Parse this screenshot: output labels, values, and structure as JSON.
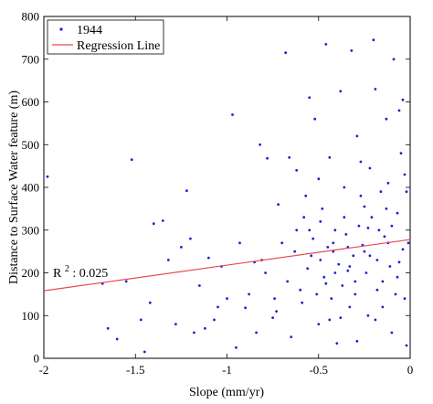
{
  "chart_data": {
    "type": "scatter",
    "xlabel": "Slope (mm/yr)",
    "ylabel": "Distance to Surface Water feature (m)",
    "xlim": [
      -2,
      0
    ],
    "ylim": [
      0,
      800
    ],
    "xticks": [
      -2,
      -1.5,
      -1,
      -0.5,
      0
    ],
    "xtick_labels": [
      "-2",
      "-1.5",
      "-1",
      "-0.5",
      "0"
    ],
    "yticks": [
      0,
      100,
      200,
      300,
      400,
      500,
      600,
      700,
      800
    ],
    "ytick_labels": [
      "0",
      "100",
      "200",
      "300",
      "400",
      "500",
      "600",
      "700",
      "800"
    ],
    "grid": false,
    "legend_position": "top-left",
    "colors": {
      "points": "#1f1fd6",
      "regression": "#e8474d"
    },
    "series": [
      {
        "name": "1944",
        "kind": "points",
        "points": [
          [
            -1.98,
            425
          ],
          [
            -1.6,
            45
          ],
          [
            -1.52,
            465
          ],
          [
            -1.45,
            15
          ],
          [
            -1.4,
            315
          ],
          [
            -1.35,
            322
          ],
          [
            -1.28,
            80
          ],
          [
            -1.22,
            392
          ],
          [
            -1.2,
            280
          ],
          [
            -1.15,
            170
          ],
          [
            -1.1,
            235
          ],
          [
            -1.07,
            90
          ],
          [
            -1.03,
            215
          ],
          [
            -0.97,
            570
          ],
          [
            -0.95,
            25
          ],
          [
            -0.9,
            118
          ],
          [
            -0.85,
            225
          ],
          [
            -0.82,
            500
          ],
          [
            -0.78,
            468
          ],
          [
            -0.75,
            95
          ],
          [
            -0.72,
            360
          ],
          [
            -0.68,
            715
          ],
          [
            -0.66,
            470
          ],
          [
            -0.62,
            440
          ],
          [
            -0.6,
            160
          ],
          [
            -0.58,
            330
          ],
          [
            -0.55,
            610
          ],
          [
            -0.54,
            240
          ],
          [
            -0.52,
            560
          ],
          [
            -0.5,
            80
          ],
          [
            -0.48,
            350
          ],
          [
            -0.46,
            735
          ],
          [
            -0.44,
            470
          ],
          [
            -0.42,
            270
          ],
          [
            -0.4,
            35
          ],
          [
            -0.38,
            625
          ],
          [
            -0.36,
            400
          ],
          [
            -0.34,
            205
          ],
          [
            -0.32,
            720
          ],
          [
            -0.3,
            150
          ],
          [
            -0.29,
            520
          ],
          [
            -0.27,
            380
          ],
          [
            -0.25,
            250
          ],
          [
            -0.23,
            100
          ],
          [
            -0.22,
            445
          ],
          [
            -0.2,
            745
          ],
          [
            -0.19,
            630
          ],
          [
            -0.17,
            300
          ],
          [
            -0.15,
            180
          ],
          [
            -0.13,
            560
          ],
          [
            -0.12,
            410
          ],
          [
            -0.1,
            60
          ],
          [
            -0.09,
            700
          ],
          [
            -0.07,
            340
          ],
          [
            -0.06,
            225
          ],
          [
            -0.05,
            480
          ],
          [
            -0.04,
            605
          ],
          [
            -0.03,
            140
          ],
          [
            -0.02,
            390
          ],
          [
            -0.01,
            270
          ],
          [
            -0.11,
            215
          ],
          [
            -0.14,
            285
          ],
          [
            -0.18,
            160
          ],
          [
            -0.21,
            330
          ],
          [
            -0.24,
            200
          ],
          [
            -0.26,
            265
          ],
          [
            -0.28,
            310
          ],
          [
            -0.31,
            240
          ],
          [
            -0.33,
            120
          ],
          [
            -0.35,
            290
          ],
          [
            -0.37,
            170
          ],
          [
            -0.39,
            220
          ],
          [
            -0.41,
            300
          ],
          [
            -0.43,
            140
          ],
          [
            -0.45,
            260
          ],
          [
            -0.47,
            190
          ],
          [
            -0.49,
            320
          ],
          [
            -0.51,
            150
          ],
          [
            -0.53,
            280
          ],
          [
            -0.56,
            210
          ],
          [
            -0.59,
            130
          ],
          [
            -0.63,
            250
          ],
          [
            -0.67,
            180
          ],
          [
            -0.7,
            270
          ],
          [
            -0.74,
            140
          ],
          [
            -0.79,
            200
          ],
          [
            -0.84,
            60
          ],
          [
            -0.88,
            150
          ],
          [
            -0.93,
            270
          ],
          [
            -1.0,
            140
          ],
          [
            -1.05,
            120
          ],
          [
            -1.12,
            70
          ],
          [
            -1.18,
            60
          ],
          [
            -1.25,
            260
          ],
          [
            -1.32,
            230
          ],
          [
            -1.42,
            130
          ],
          [
            -1.47,
            90
          ],
          [
            -1.55,
            180
          ],
          [
            -1.65,
            70
          ],
          [
            -1.68,
            175
          ],
          [
            -0.08,
            150
          ],
          [
            -0.16,
            390
          ],
          [
            -0.27,
            460
          ],
          [
            -0.36,
            330
          ],
          [
            -0.44,
            90
          ],
          [
            -0.57,
            380
          ],
          [
            -0.65,
            50
          ],
          [
            -0.73,
            110
          ],
          [
            -0.81,
            230
          ],
          [
            -0.02,
            30
          ],
          [
            -0.06,
            580
          ],
          [
            -0.13,
            350
          ],
          [
            -0.19,
            90
          ],
          [
            -0.29,
            40
          ],
          [
            -0.41,
            200
          ],
          [
            -0.5,
            420
          ],
          [
            -0.62,
            300
          ],
          [
            -0.04,
            255
          ],
          [
            -0.1,
            310
          ],
          [
            -0.22,
            240
          ],
          [
            -0.34,
            260
          ],
          [
            -0.46,
            175
          ],
          [
            -0.15,
            120
          ],
          [
            -0.25,
            355
          ],
          [
            -0.38,
            95
          ],
          [
            -0.03,
            430
          ],
          [
            -0.07,
            190
          ],
          [
            -0.12,
            270
          ],
          [
            -0.18,
            230
          ],
          [
            -0.23,
            305
          ],
          [
            -0.3,
            180
          ],
          [
            -0.33,
            215
          ],
          [
            -0.42,
            250
          ],
          [
            -0.49,
            230
          ],
          [
            -0.55,
            300
          ]
        ]
      },
      {
        "name": "Regression Line",
        "kind": "line",
        "points": [
          [
            -2,
            158
          ],
          [
            0,
            278
          ]
        ]
      }
    ],
    "annotations": [
      {
        "text_base": "R",
        "text_sup": "2",
        "text_rest": ": 0.025",
        "x": -1.95,
        "y": 190
      }
    ]
  }
}
